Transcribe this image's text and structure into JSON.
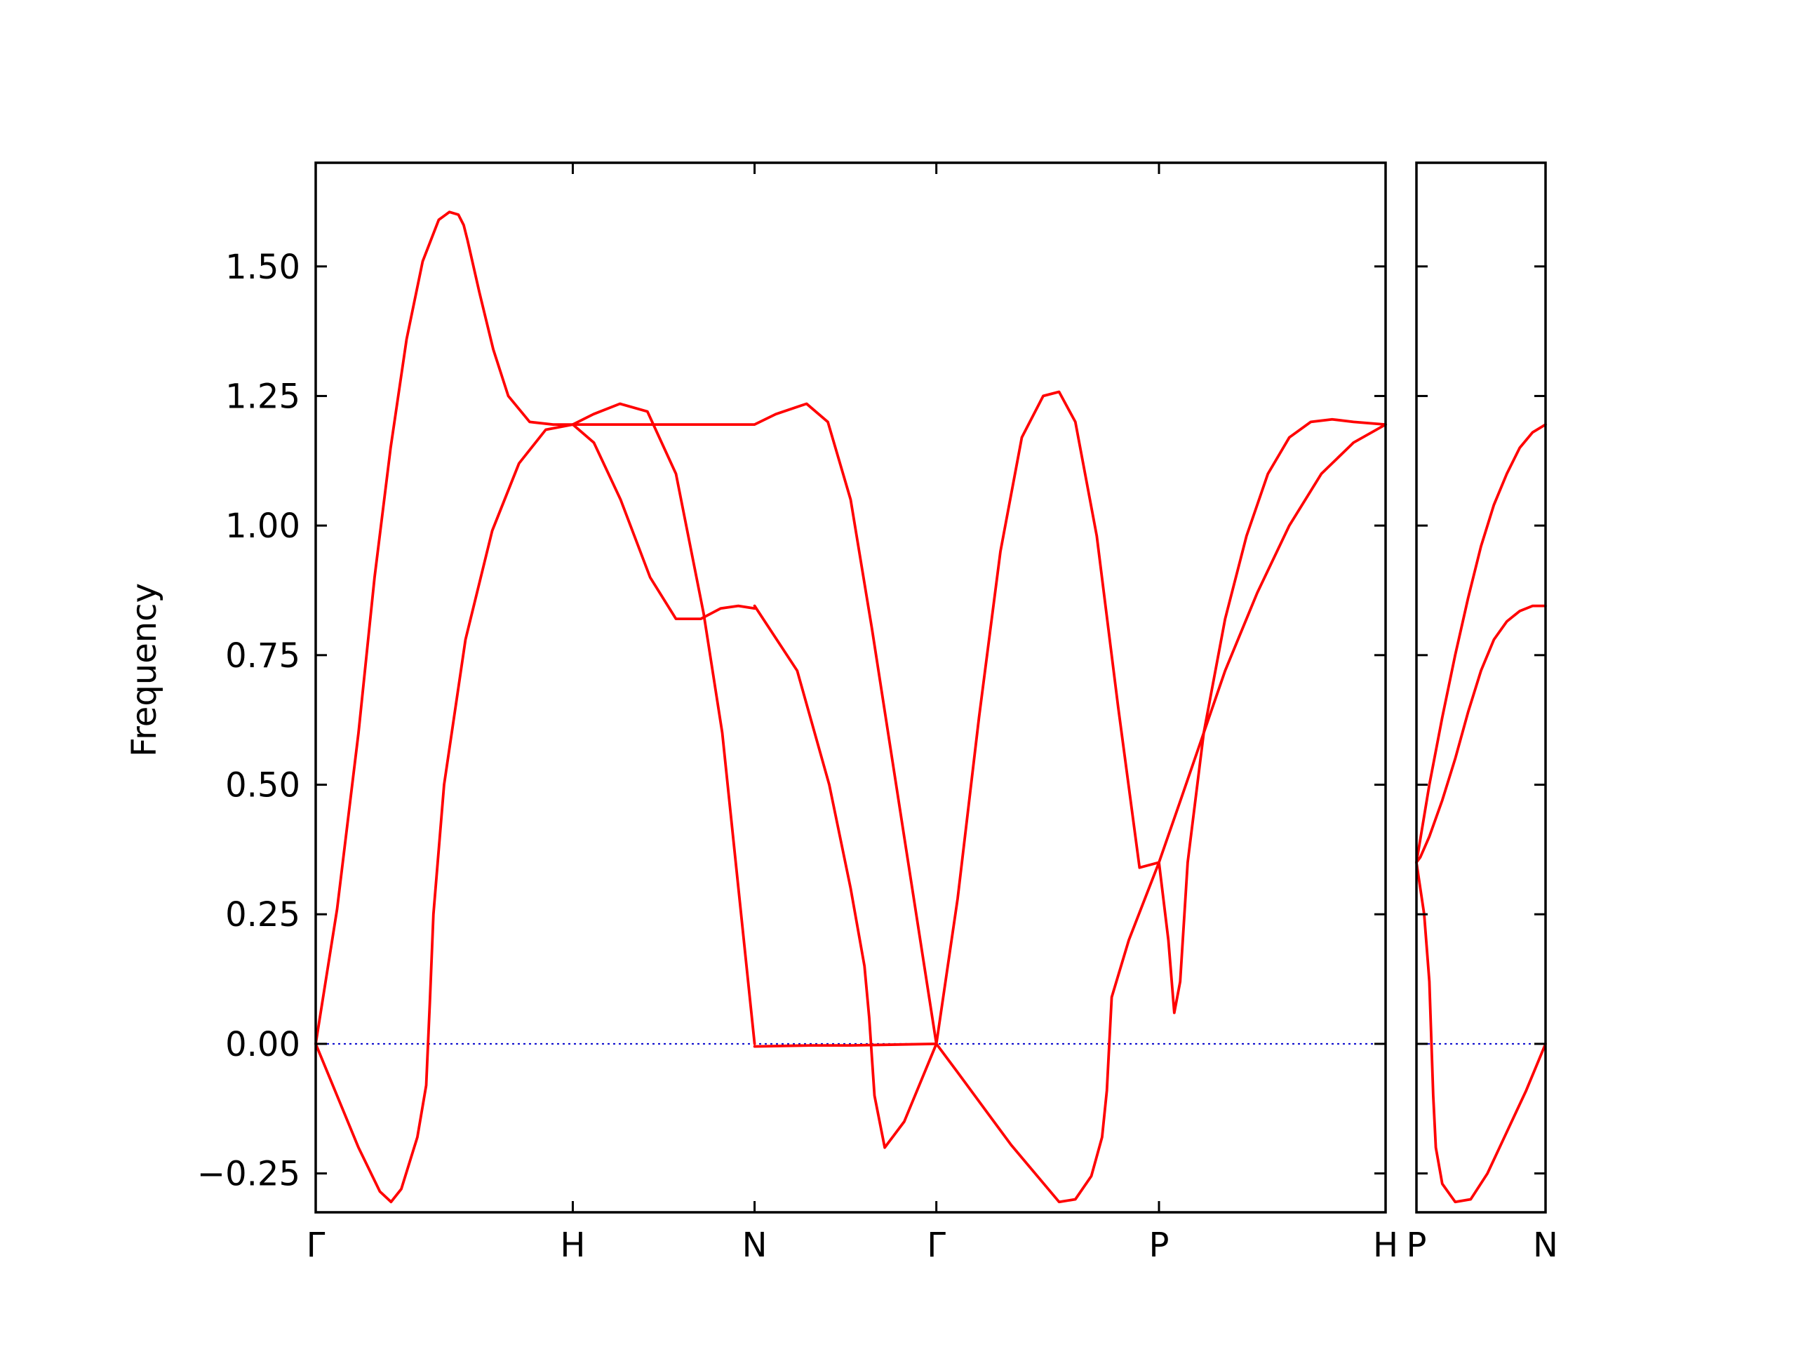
{
  "chart_data": {
    "type": "line",
    "ylabel": "Frequency",
    "xlabel": "",
    "ylim": [
      -0.325,
      1.7
    ],
    "yticks": [
      {
        "value": -0.25,
        "label": "−0.25"
      },
      {
        "value": 0.0,
        "label": "0.00"
      },
      {
        "value": 0.25,
        "label": "0.25"
      },
      {
        "value": 0.5,
        "label": "0.50"
      },
      {
        "value": 0.75,
        "label": "0.75"
      },
      {
        "value": 1.0,
        "label": "1.00"
      },
      {
        "value": 1.25,
        "label": "1.25"
      },
      {
        "value": 1.5,
        "label": "1.50"
      }
    ],
    "band_color": "#ff0000",
    "zero_line_color": "#0000cc",
    "grid": false,
    "panels": [
      {
        "xlim": [
          0,
          1
        ],
        "xticks": [
          {
            "value": 0.0,
            "label": "Γ"
          },
          {
            "value": 0.2403,
            "label": "H"
          },
          {
            "value": 0.4102,
            "label": "N"
          },
          {
            "value": 0.5801,
            "label": "Γ"
          },
          {
            "value": 0.7882,
            "label": "P"
          },
          {
            "value": 1.0,
            "label": "H"
          }
        ],
        "series": [
          {
            "x": [
              0.0,
              0.02,
              0.04,
              0.055,
              0.07,
              0.085,
              0.1,
              0.115,
              0.125,
              0.1333,
              0.1383,
              0.142,
              0.153,
              0.166,
              0.18,
              0.2,
              0.222,
              0.2403,
              0.2597,
              0.2844,
              0.31,
              0.3367,
              0.3626,
              0.38,
              0.4102
            ],
            "y": [
              0.0,
              0.26,
              0.6,
              0.9,
              1.15,
              1.36,
              1.51,
              1.59,
              1.605,
              1.6,
              1.58,
              1.55,
              1.45,
              1.34,
              1.25,
              1.2,
              1.195,
              1.195,
              1.215,
              1.235,
              1.22,
              1.1,
              0.83,
              0.6,
              0.0
            ]
          },
          {
            "x": [
              0.0,
              0.02,
              0.04,
              0.06,
              0.0704,
              0.08,
              0.095,
              0.1033,
              0.1067,
              0.11,
              0.12,
              0.14,
              0.165,
              0.19,
              0.215,
              0.2403,
              0.26,
              0.285,
              0.3126,
              0.3367,
              0.36,
              0.3784,
              0.395,
              0.4102
            ],
            "y": [
              0.0,
              -0.1,
              -0.2,
              -0.285,
              -0.305,
              -0.28,
              -0.18,
              -0.08,
              0.08,
              0.25,
              0.5,
              0.78,
              0.99,
              1.12,
              1.185,
              1.195,
              1.16,
              1.05,
              0.9,
              0.82,
              0.82,
              0.84,
              0.845,
              0.84
            ]
          },
          {
            "x": [
              0.2403,
              0.29,
              0.35,
              0.4102,
              0.43,
              0.4588,
              0.4787,
              0.5,
              0.52,
              0.55,
              0.5801
            ],
            "y": [
              1.195,
              1.195,
              1.195,
              1.195,
              1.215,
              1.235,
              1.2,
              1.05,
              0.8,
              0.4,
              0.0
            ]
          },
          {
            "x": [
              0.4102,
              0.45,
              0.48,
              0.5,
              0.5129,
              0.5174,
              0.5223,
              0.5319,
              0.5501,
              0.5801
            ],
            "y": [
              0.845,
              0.72,
              0.5,
              0.3,
              0.15,
              0.05,
              -0.1,
              -0.2,
              -0.15,
              0.0
            ]
          },
          {
            "x": [
              0.4102,
              0.4635,
              0.5,
              0.5801
            ],
            "y": [
              -0.005,
              -0.003,
              -0.003,
              0.0
            ]
          },
          {
            "x": [
              0.5801,
              0.6,
              0.62,
              0.64,
              0.66,
              0.68,
              0.6948,
              0.71,
              0.73,
              0.75,
              0.77,
              0.7882,
              0.797,
              0.8025,
              0.808,
              0.815,
              0.83,
              0.85,
              0.87,
              0.89,
              0.91,
              0.93,
              0.95,
              0.97,
              1.0
            ],
            "y": [
              0.0,
              0.28,
              0.63,
              0.95,
              1.17,
              1.25,
              1.258,
              1.2,
              0.98,
              0.65,
              0.34,
              0.35,
              0.2,
              0.06,
              0.12,
              0.35,
              0.6,
              0.82,
              0.98,
              1.1,
              1.17,
              1.2,
              1.205,
              1.2,
              1.195
            ]
          },
          {
            "x": [
              0.5801,
              0.6,
              0.625,
              0.65,
              0.6948,
              0.71,
              0.725,
              0.735,
              0.7395,
              0.744,
              0.76,
              0.7882,
              0.81,
              0.83,
              0.85,
              0.88,
              0.91,
              0.94,
              0.97,
              1.0
            ],
            "y": [
              0.0,
              -0.055,
              -0.125,
              -0.195,
              -0.305,
              -0.3,
              -0.255,
              -0.18,
              -0.09,
              0.09,
              0.2,
              0.35,
              0.48,
              0.6,
              0.72,
              0.87,
              1.0,
              1.1,
              1.16,
              1.195
            ]
          }
        ]
      },
      {
        "xlim": [
          0,
          1
        ],
        "xticks": [
          {
            "value": 0.0,
            "label": "P"
          },
          {
            "value": 1.0,
            "label": "N"
          }
        ],
        "series": [
          {
            "x": [
              0.0,
              0.03,
              0.1,
              0.2,
              0.3,
              0.4,
              0.5,
              0.6,
              0.7,
              0.8,
              0.9,
              1.0
            ],
            "y": [
              0.35,
              0.36,
              0.4,
              0.47,
              0.55,
              0.64,
              0.72,
              0.78,
              0.815,
              0.835,
              0.845,
              0.845
            ]
          },
          {
            "x": [
              0.0,
              0.1,
              0.2,
              0.3,
              0.4,
              0.5,
              0.6,
              0.7,
              0.8,
              0.9,
              1.0
            ],
            "y": [
              0.35,
              0.5,
              0.63,
              0.75,
              0.86,
              0.96,
              1.04,
              1.1,
              1.15,
              1.18,
              1.195
            ]
          },
          {
            "x": [
              0.0,
              0.06,
              0.1,
              0.13,
              0.15,
              0.2,
              0.3,
              0.42,
              0.55,
              0.7,
              0.85,
              1.0
            ],
            "y": [
              0.35,
              0.25,
              0.12,
              -0.1,
              -0.2,
              -0.27,
              -0.305,
              -0.3,
              -0.25,
              -0.17,
              -0.09,
              0.0
            ]
          }
        ]
      }
    ]
  }
}
